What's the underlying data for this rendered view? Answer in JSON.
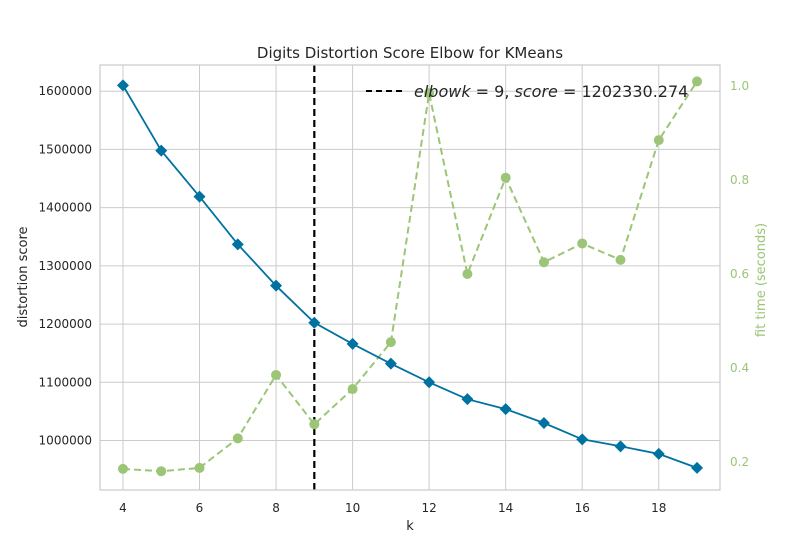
{
  "chart_data": {
    "type": "line",
    "title": "Digits Distortion Score Elbow for KMeans",
    "xlabel": "k",
    "ylabel": "distortion score",
    "y2label": "fit time (seconds)",
    "xlim": [
      3.4,
      19.6
    ],
    "ylim": [
      915000,
      1645000
    ],
    "y2lim": [
      0.14,
      1.045
    ],
    "x_ticks": [
      4,
      6,
      8,
      10,
      12,
      14,
      16,
      18
    ],
    "y_ticks": [
      1000000,
      1100000,
      1200000,
      1300000,
      1400000,
      1500000,
      1600000
    ],
    "y2_ticks": [
      0.2,
      0.4,
      0.6,
      0.8,
      1.0
    ],
    "y2_tick_labels": [
      "0.2",
      "0.4",
      "0.6",
      "0.8",
      "1.0"
    ],
    "grid": true,
    "legend_position": "top-right",
    "x": [
      4,
      5,
      6,
      7,
      8,
      9,
      10,
      11,
      12,
      13,
      14,
      15,
      16,
      17,
      18,
      19
    ],
    "series": [
      {
        "name": "distortion score",
        "axis": "left",
        "color": "#0072a2",
        "marker": "diamond",
        "values": [
          1610000,
          1498000,
          1419000,
          1337000,
          1266000,
          1202330,
          1166000,
          1132000,
          1100000,
          1071000,
          1054000,
          1030000,
          1002000,
          990000,
          977000,
          953000
        ]
      },
      {
        "name": "fit time (seconds)",
        "axis": "right",
        "color": "#9cc577",
        "marker": "circle",
        "dashed": true,
        "values": [
          0.185,
          0.18,
          0.187,
          0.25,
          0.385,
          0.28,
          0.355,
          0.455,
          0.985,
          0.6,
          0.805,
          0.625,
          0.665,
          0.63,
          0.885,
          1.01
        ]
      }
    ],
    "elbow": {
      "k": 9,
      "legend_prefix": "elbow",
      "legend_k": "k",
      "legend_eq1": " = 9, ",
      "legend_score": "score",
      "legend_eq2": " = 1202330.274",
      "color": "#000000"
    }
  }
}
